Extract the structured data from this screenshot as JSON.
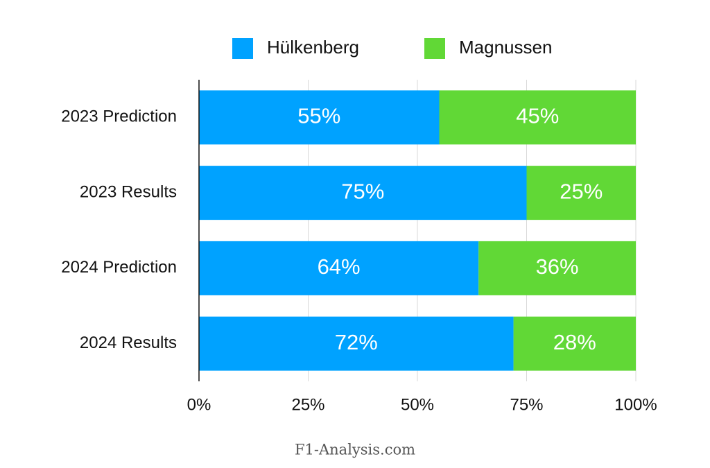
{
  "chart_data": {
    "type": "bar",
    "orientation": "horizontal",
    "stacked": true,
    "categories": [
      "2023 Prediction",
      "2023 Results",
      "2024 Prediction",
      "2024 Results"
    ],
    "series": [
      {
        "name": "Hülkenberg",
        "color": "#00a2ff",
        "values": [
          55,
          75,
          64,
          72
        ],
        "value_labels": [
          "55%",
          "75%",
          "64%",
          "72%"
        ]
      },
      {
        "name": "Magnussen",
        "color": "#61d836",
        "values": [
          45,
          25,
          36,
          28
        ],
        "value_labels": [
          "45%",
          "25%",
          "36%",
          "28%"
        ]
      }
    ],
    "xlim": [
      0,
      100
    ],
    "xticks": [
      {
        "value": 0,
        "label": "0%"
      },
      {
        "value": 25,
        "label": "25%"
      },
      {
        "value": 50,
        "label": "50%"
      },
      {
        "value": 75,
        "label": "75%"
      },
      {
        "value": 100,
        "label": "100%"
      }
    ],
    "grid": true,
    "legend": "top",
    "source": "F1-Analysis.com"
  }
}
